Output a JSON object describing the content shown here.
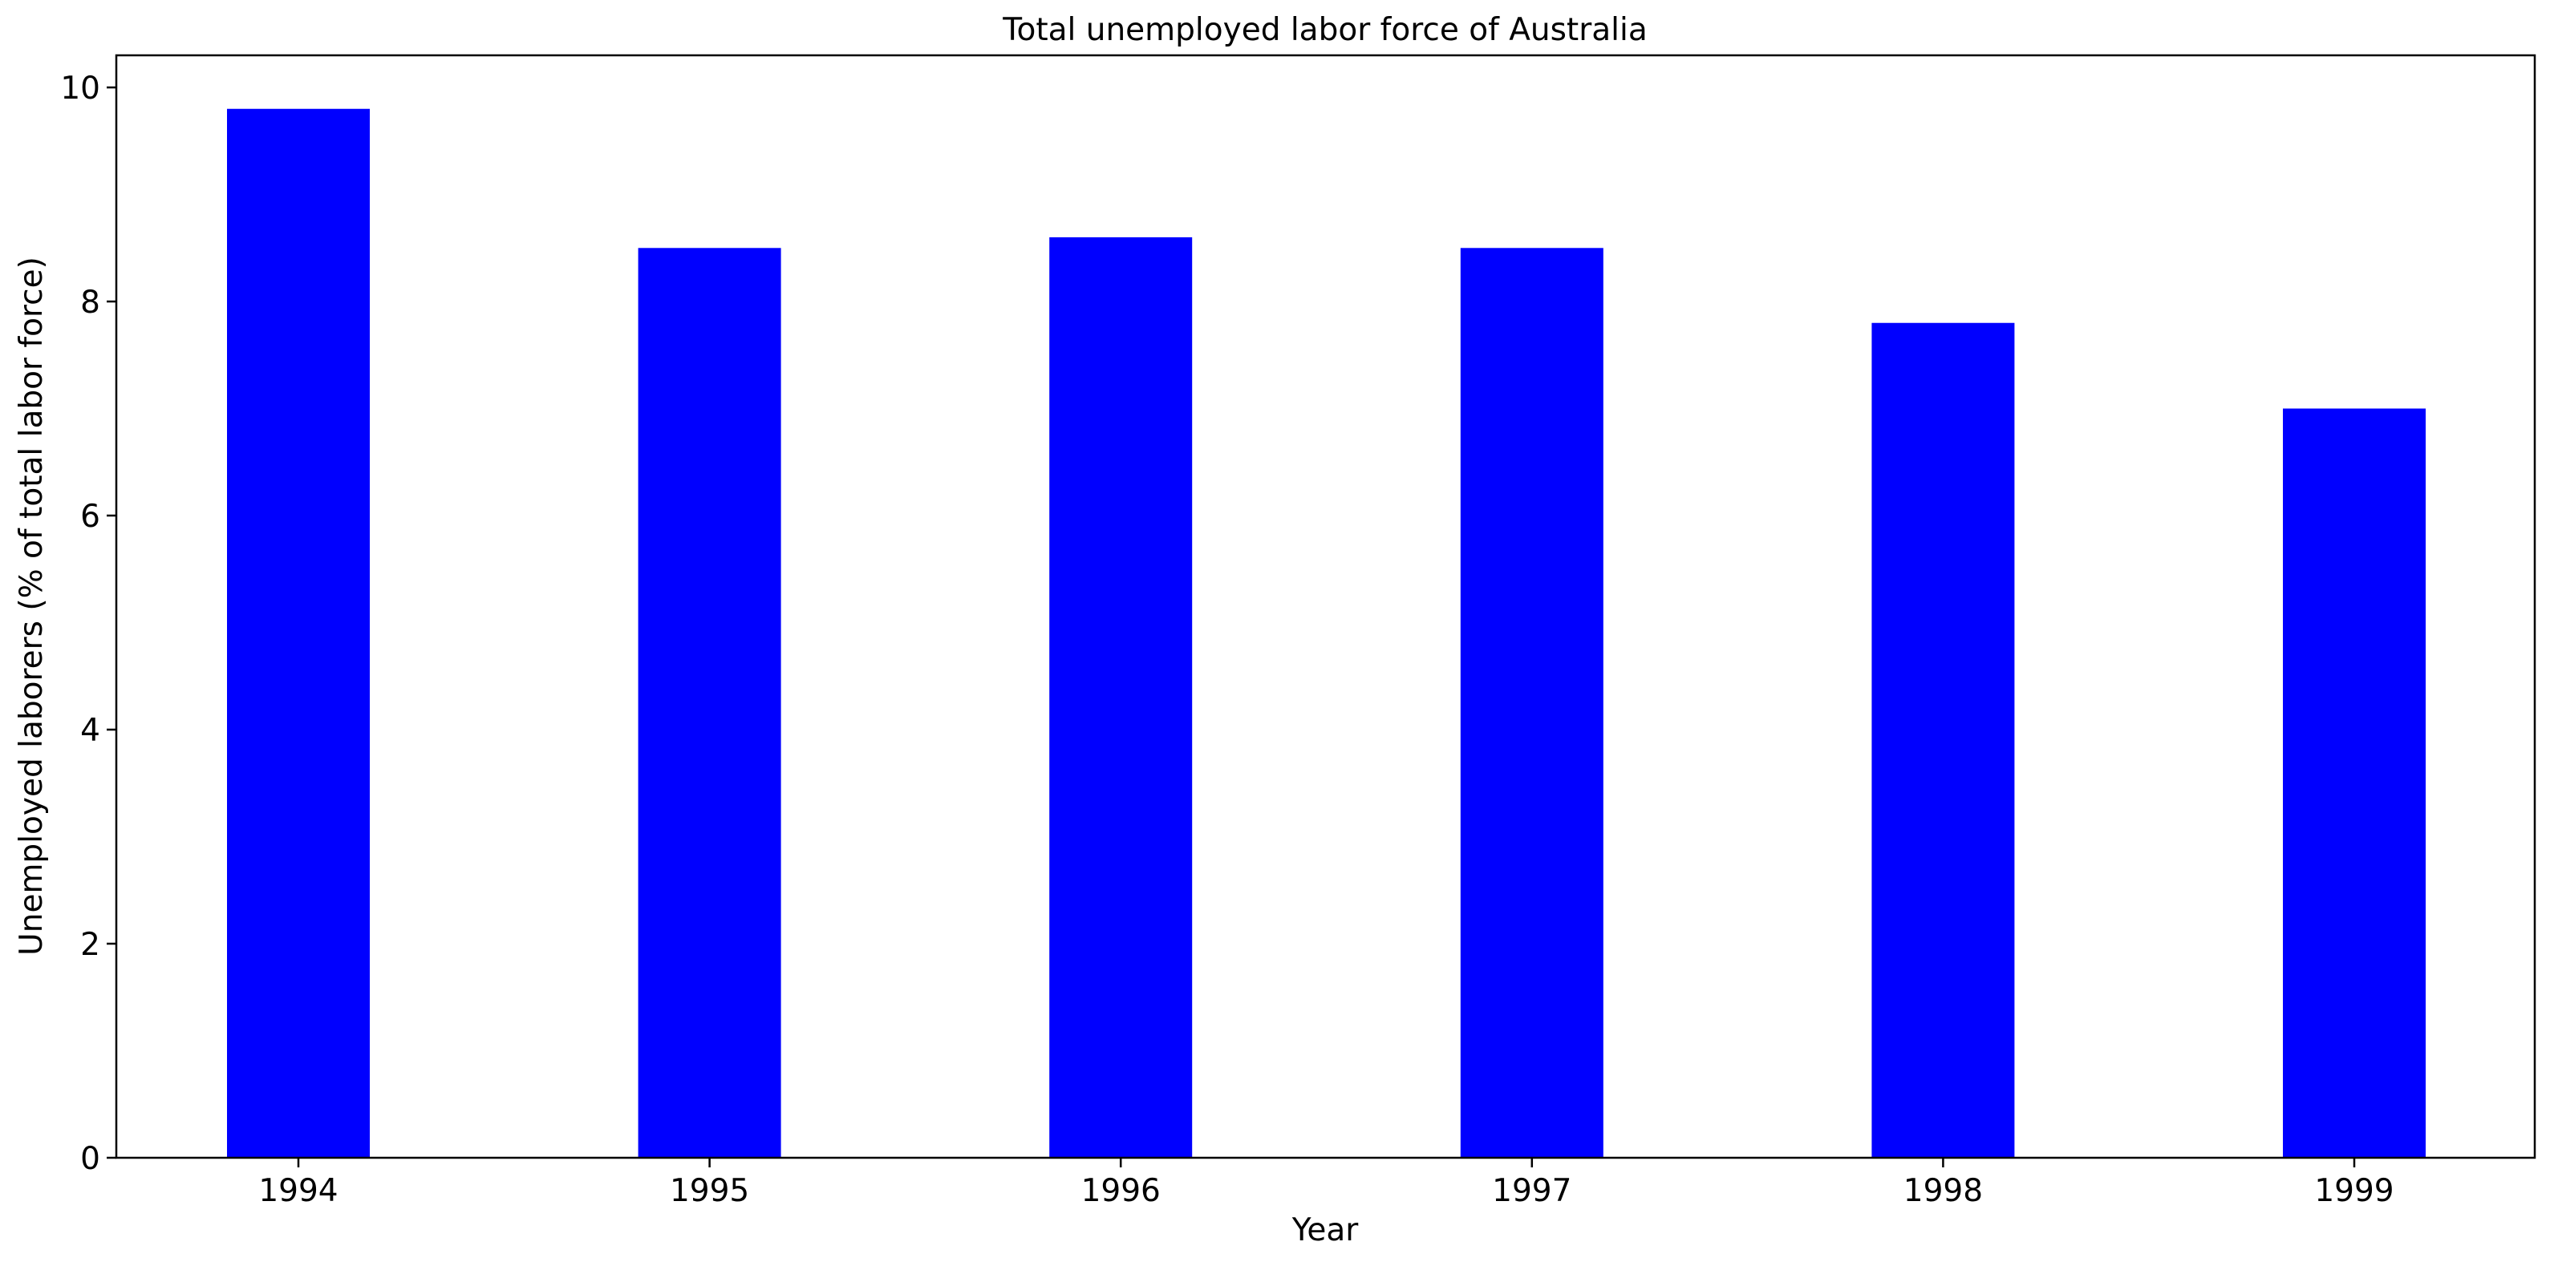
{
  "chart_data": {
    "type": "bar",
    "title": "Total unemployed labor force of Australia",
    "xlabel": "Year",
    "ylabel": "Unemployed laborers (% of total labor force)",
    "categories": [
      "1994",
      "1995",
      "1996",
      "1997",
      "1998",
      "1999"
    ],
    "values": [
      9.8,
      8.5,
      8.6,
      8.5,
      7.8,
      7.0
    ],
    "ylim": [
      0,
      10.3
    ],
    "yticks": [
      0,
      2,
      4,
      6,
      8,
      10
    ],
    "grid": false,
    "legend": "none",
    "bar_color": "#0000ff"
  }
}
